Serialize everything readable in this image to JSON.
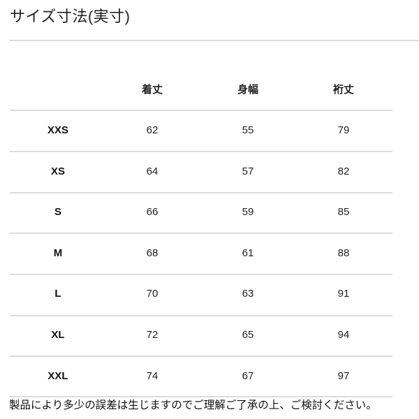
{
  "title": "サイズ寸法(実寸)",
  "table": {
    "headers": [
      "",
      "着丈",
      "身幅",
      "裄丈"
    ],
    "rows": [
      [
        "XXS",
        "62",
        "55",
        "79"
      ],
      [
        "XS",
        "64",
        "57",
        "82"
      ],
      [
        "S",
        "66",
        "59",
        "85"
      ],
      [
        "M",
        "68",
        "61",
        "88"
      ],
      [
        "L",
        "70",
        "63",
        "91"
      ],
      [
        "XL",
        "72",
        "65",
        "94"
      ],
      [
        "XXL",
        "74",
        "67",
        "97"
      ]
    ]
  },
  "note": "製品により多少の誤差は生じますのでご理解ご了承の上、ご検討ください。",
  "colors": {
    "divider": "#dcdcdc",
    "text": "#111111"
  }
}
